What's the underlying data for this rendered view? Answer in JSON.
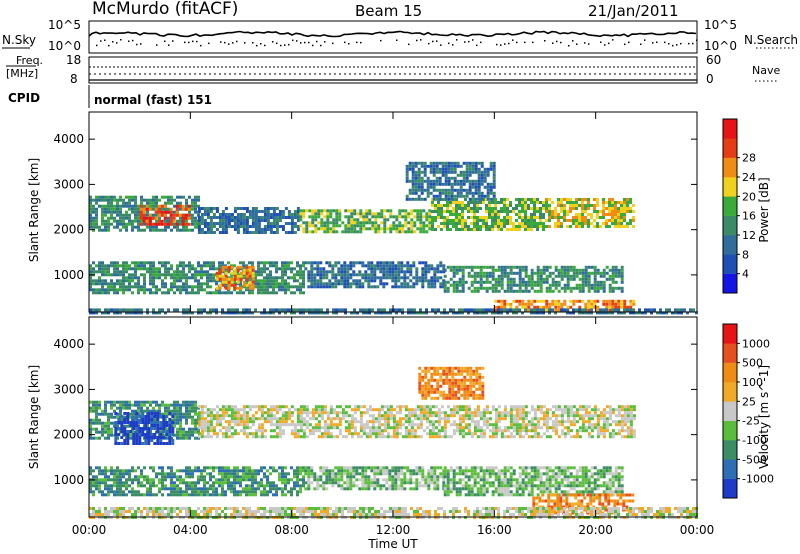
{
  "header": {
    "station": "McMurdo (fitACF)",
    "beam": "Beam 15",
    "date": "21/Jan/2011"
  },
  "noise_panel": {
    "left_label": "N.Sky",
    "left_ticks": [
      "10^5",
      "10^0"
    ],
    "right_label": "N.Search",
    "right_ticks": [
      "10^5",
      "10^0"
    ]
  },
  "freq_panel": {
    "left_label_line1": "Freq.",
    "left_label_line2": "[MHz]",
    "left_ticks": [
      "18",
      "8"
    ],
    "right_label": "Nave",
    "right_ticks": [
      "60",
      "0"
    ]
  },
  "cpid": {
    "label": "CPID",
    "value": "normal (fast) 151"
  },
  "chart_data": [
    {
      "type": "heatmap",
      "name": "power",
      "ylabel": "Slant Range [km]",
      "xlabel": "Time UT",
      "x_range_hours": [
        0,
        24
      ],
      "x_ticks": [
        "00:00",
        "04:00",
        "08:00",
        "12:00",
        "16:00",
        "20:00",
        "00:00"
      ],
      "y_range_km": [
        180,
        4600
      ],
      "y_ticks": [
        1000,
        2000,
        3000,
        4000
      ],
      "colorbar": {
        "label": "Power [dB]",
        "ticks": [
          "4",
          "8",
          "12",
          "16",
          "20",
          "24",
          "28"
        ],
        "colors": [
          "#1414e6",
          "#1e4fb4",
          "#2f6e9a",
          "#3a8a68",
          "#3aaa3a",
          "#f0d21e",
          "#f08c14",
          "#e63c14",
          "#e61414"
        ]
      },
      "echo_regions": [
        {
          "t0": 0.0,
          "t1": 4.3,
          "r0": 2000,
          "r1": 2750,
          "level": 3
        },
        {
          "t0": 2.0,
          "t1": 4.0,
          "r0": 2100,
          "r1": 2550,
          "level": 7
        },
        {
          "t0": 4.3,
          "t1": 8.3,
          "r0": 1950,
          "r1": 2500,
          "level": 2
        },
        {
          "t0": 8.3,
          "t1": 13.5,
          "r0": 1950,
          "r1": 2450,
          "level": 4
        },
        {
          "t0": 13.5,
          "t1": 18.0,
          "r0": 2000,
          "r1": 2700,
          "level": 4
        },
        {
          "t0": 18.0,
          "t1": 21.5,
          "r0": 2050,
          "r1": 2700,
          "level": 5
        },
        {
          "t0": 12.5,
          "t1": 16.0,
          "r0": 2700,
          "r1": 3500,
          "level": 2
        },
        {
          "t0": 0.0,
          "t1": 8.5,
          "r0": 600,
          "r1": 1300,
          "level": 3
        },
        {
          "t0": 5.0,
          "t1": 6.5,
          "r0": 700,
          "r1": 1200,
          "level": 6
        },
        {
          "t0": 8.5,
          "t1": 14.0,
          "r0": 750,
          "r1": 1300,
          "level": 2
        },
        {
          "t0": 14.0,
          "t1": 21.0,
          "r0": 650,
          "r1": 1200,
          "level": 3
        },
        {
          "t0": 16.0,
          "t1": 21.5,
          "r0": 200,
          "r1": 450,
          "level": 6
        },
        {
          "t0": 0.0,
          "t1": 24.0,
          "r0": 180,
          "r1": 260,
          "level": 2
        }
      ]
    },
    {
      "type": "heatmap",
      "name": "velocity",
      "ylabel": "Slant Range [km]",
      "xlabel": "Time UT",
      "x_range_hours": [
        0,
        24
      ],
      "x_ticks": [
        "00:00",
        "04:00",
        "08:00",
        "12:00",
        "16:00",
        "20:00",
        "00:00"
      ],
      "y_range_km": [
        180,
        4600
      ],
      "y_ticks": [
        1000,
        2000,
        3000,
        4000
      ],
      "colorbar": {
        "label": "Velocity [m s^-1]",
        "ticks": [
          "1000",
          "500",
          "100",
          "25",
          "-25",
          "-100",
          "-500",
          "-1000"
        ],
        "colors": [
          "#1e3cc8",
          "#2d6eb4",
          "#3c8c64",
          "#5abe3c",
          "#c8c8c8",
          "#f0aa28",
          "#f08c14",
          "#e6501e",
          "#e61414"
        ]
      },
      "echo_regions": [
        {
          "t0": 0.0,
          "t1": 4.3,
          "r0": 1900,
          "r1": 2750,
          "level": 2
        },
        {
          "t0": 1.0,
          "t1": 3.3,
          "r0": 1800,
          "r1": 2500,
          "level": 0
        },
        {
          "t0": 4.3,
          "t1": 21.5,
          "r0": 1950,
          "r1": 2650,
          "level": 4
        },
        {
          "t0": 13.0,
          "t1": 15.5,
          "r0": 2800,
          "r1": 3500,
          "level": 6
        },
        {
          "t0": 0.0,
          "t1": 8.5,
          "r0": 700,
          "r1": 1300,
          "level": 2
        },
        {
          "t0": 8.5,
          "t1": 14.0,
          "r0": 800,
          "r1": 1300,
          "level": 3
        },
        {
          "t0": 14.0,
          "t1": 21.0,
          "r0": 700,
          "r1": 1300,
          "level": 3
        },
        {
          "t0": 17.5,
          "t1": 21.5,
          "r0": 300,
          "r1": 700,
          "level": 6
        },
        {
          "t0": 0.0,
          "t1": 24.0,
          "r0": 180,
          "r1": 400,
          "level": 4
        }
      ]
    }
  ]
}
